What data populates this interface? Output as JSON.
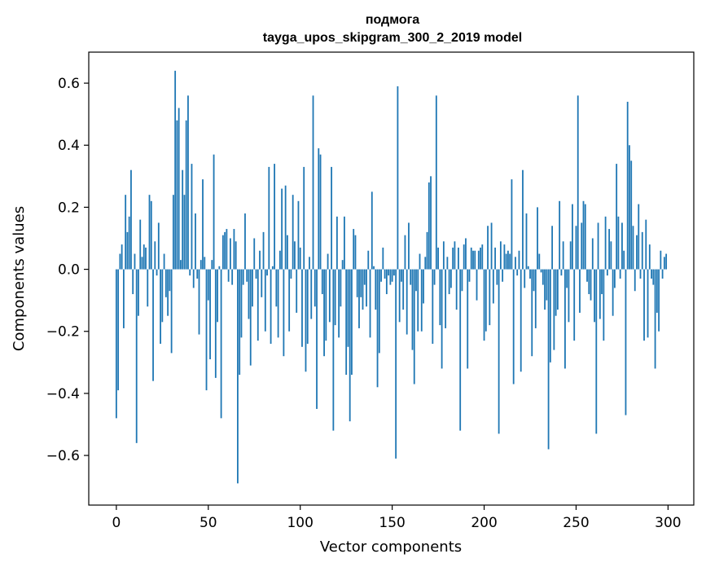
{
  "chart_data": {
    "type": "bar",
    "title": "подмога",
    "subtitle": "tayga_upos_skipgram_300_2_2019 model",
    "xlabel": "Vector components",
    "ylabel": "Components values",
    "xlim": [
      -15,
      314
    ],
    "ylim": [
      -0.76,
      0.7
    ],
    "xticks": [
      0,
      50,
      100,
      150,
      200,
      250,
      300
    ],
    "yticks": [
      -0.6,
      -0.4,
      -0.2,
      0.0,
      0.2,
      0.4,
      0.6
    ],
    "xtick_labels": [
      "0",
      "50",
      "100",
      "150",
      "200",
      "250",
      "300"
    ],
    "ytick_labels": [
      "−0.6",
      "−0.4",
      "−0.2",
      "0.0",
      "0.2",
      "0.4",
      "0.6"
    ],
    "grid": false,
    "legend": false,
    "color": "#1f77b4",
    "x_start": 0,
    "values": [
      -0.48,
      -0.39,
      0.05,
      0.08,
      -0.19,
      0.24,
      0.12,
      0.17,
      0.32,
      -0.08,
      0.05,
      -0.56,
      -0.15,
      0.16,
      0.04,
      0.08,
      0.07,
      -0.12,
      0.24,
      0.22,
      -0.36,
      0.09,
      -0.02,
      0.15,
      -0.24,
      -0.17,
      0.05,
      -0.09,
      -0.15,
      -0.07,
      -0.27,
      0.24,
      0.64,
      0.48,
      0.52,
      0.03,
      0.32,
      0.24,
      0.48,
      0.56,
      -0.02,
      0.34,
      -0.06,
      0.18,
      -0.03,
      -0.21,
      0.03,
      0.29,
      0.04,
      -0.39,
      -0.1,
      -0.29,
      0.03,
      0.37,
      -0.35,
      -0.17,
      0.01,
      -0.48,
      0.11,
      0.12,
      0.13,
      -0.04,
      0.1,
      -0.05,
      0.13,
      0.09,
      -0.69,
      -0.34,
      -0.22,
      -0.05,
      0.18,
      -0.04,
      -0.16,
      -0.31,
      -0.12,
      0.1,
      -0.03,
      -0.23,
      0.06,
      -0.09,
      0.12,
      -0.2,
      -0.02,
      0.33,
      -0.24,
      0.01,
      0.34,
      -0.12,
      -0.22,
      0.06,
      0.26,
      -0.28,
      0.27,
      0.11,
      -0.2,
      -0.03,
      0.24,
      0.09,
      -0.14,
      0.22,
      0.07,
      -0.25,
      0.33,
      -0.33,
      -0.24,
      0.04,
      -0.16,
      0.56,
      -0.12,
      -0.45,
      0.39,
      0.37,
      -0.08,
      -0.28,
      -0.23,
      0.05,
      -0.17,
      0.33,
      -0.52,
      -0.18,
      0.17,
      -0.22,
      -0.12,
      0.03,
      0.17,
      -0.34,
      -0.25,
      -0.49,
      -0.34,
      0.13,
      0.11,
      -0.09,
      -0.19,
      -0.09,
      -0.13,
      -0.05,
      -0.12,
      0.06,
      -0.22,
      0.25,
      0.01,
      -0.13,
      -0.38,
      -0.27,
      -0.04,
      0.07,
      -0.03,
      -0.08,
      -0.02,
      -0.05,
      -0.04,
      -0.02,
      -0.61,
      0.59,
      -0.17,
      -0.04,
      -0.13,
      0.11,
      -0.21,
      0.15,
      -0.05,
      -0.26,
      -0.37,
      -0.07,
      -0.2,
      0.05,
      -0.2,
      -0.11,
      0.04,
      0.12,
      0.28,
      0.3,
      -0.24,
      -0.05,
      0.56,
      0.07,
      -0.18,
      -0.32,
      0.09,
      -0.19,
      0.04,
      -0.08,
      -0.06,
      0.07,
      0.09,
      -0.13,
      0.07,
      -0.52,
      -0.07,
      0.08,
      0.1,
      -0.32,
      -0.04,
      0.07,
      0.06,
      0.06,
      -0.1,
      0.06,
      0.07,
      0.08,
      -0.23,
      -0.2,
      0.14,
      -0.18,
      0.15,
      -0.11,
      0.07,
      -0.05,
      -0.53,
      0.09,
      -0.04,
      0.08,
      0.05,
      0.06,
      0.05,
      0.29,
      -0.37,
      0.04,
      -0.02,
      0.06,
      -0.33,
      0.32,
      -0.06,
      0.18,
      0.01,
      -0.03,
      -0.28,
      -0.07,
      -0.19,
      0.2,
      0.05,
      -0.01,
      -0.05,
      -0.13,
      -0.1,
      -0.58,
      -0.3,
      0.14,
      -0.26,
      -0.15,
      -0.13,
      0.22,
      -0.02,
      0.09,
      -0.32,
      -0.06,
      -0.17,
      0.09,
      0.21,
      -0.23,
      0.14,
      0.56,
      -0.14,
      0.15,
      0.22,
      0.21,
      -0.04,
      -0.08,
      -0.1,
      0.1,
      -0.17,
      -0.53,
      0.15,
      -0.16,
      -0.08,
      -0.23,
      0.17,
      -0.02,
      0.13,
      0.09,
      -0.15,
      -0.06,
      0.34,
      0.17,
      -0.03,
      0.15,
      0.06,
      -0.47,
      0.54,
      0.4,
      0.35,
      0.14,
      -0.07,
      0.11,
      0.21,
      -0.03,
      0.12,
      -0.23,
      0.16,
      -0.22,
      0.08,
      -0.03,
      -0.05,
      -0.32,
      -0.14,
      -0.2,
      0.06,
      -0.03,
      0.04,
      0.05
    ]
  }
}
